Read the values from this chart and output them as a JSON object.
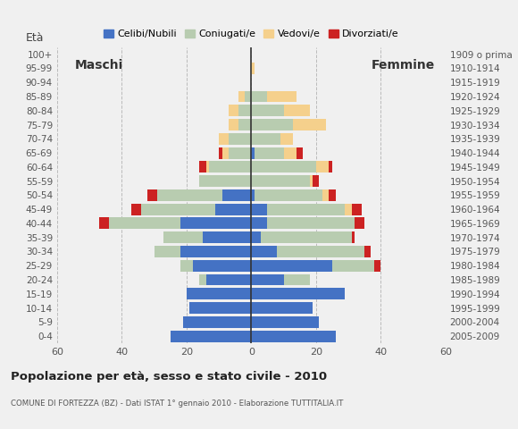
{
  "age_groups": [
    "0-4",
    "5-9",
    "10-14",
    "15-19",
    "20-24",
    "25-29",
    "30-34",
    "35-39",
    "40-44",
    "45-49",
    "50-54",
    "55-59",
    "60-64",
    "65-69",
    "70-74",
    "75-79",
    "80-84",
    "85-89",
    "90-94",
    "95-99",
    "100+"
  ],
  "birth_years": [
    "2005-2009",
    "2000-2004",
    "1995-1999",
    "1990-1994",
    "1985-1989",
    "1980-1984",
    "1975-1979",
    "1970-1974",
    "1965-1969",
    "1960-1964",
    "1955-1959",
    "1950-1954",
    "1945-1949",
    "1940-1944",
    "1935-1939",
    "1930-1934",
    "1925-1929",
    "1920-1924",
    "1915-1919",
    "1910-1914",
    "1909 o prima"
  ],
  "males": {
    "celibi": [
      25,
      21,
      19,
      20,
      14,
      18,
      22,
      15,
      22,
      11,
      9,
      0,
      0,
      0,
      0,
      0,
      0,
      0,
      0,
      0,
      0
    ],
    "coniugati": [
      0,
      0,
      0,
      0,
      2,
      4,
      8,
      12,
      22,
      23,
      20,
      16,
      13,
      7,
      7,
      4,
      4,
      2,
      0,
      0,
      0
    ],
    "vedovi": [
      0,
      0,
      0,
      0,
      0,
      0,
      0,
      0,
      0,
      0,
      0,
      0,
      1,
      2,
      3,
      3,
      3,
      2,
      0,
      0,
      0
    ],
    "divorziati": [
      0,
      0,
      0,
      0,
      0,
      0,
      0,
      0,
      3,
      3,
      3,
      0,
      2,
      1,
      0,
      0,
      0,
      0,
      0,
      0,
      0
    ]
  },
  "females": {
    "nubili": [
      26,
      21,
      19,
      29,
      10,
      25,
      8,
      3,
      5,
      5,
      1,
      0,
      0,
      1,
      0,
      0,
      0,
      0,
      0,
      0,
      0
    ],
    "coniugate": [
      0,
      0,
      0,
      0,
      8,
      13,
      27,
      28,
      27,
      24,
      21,
      18,
      20,
      9,
      9,
      13,
      10,
      5,
      0,
      0,
      0
    ],
    "vedove": [
      0,
      0,
      0,
      0,
      0,
      0,
      0,
      0,
      0,
      2,
      2,
      1,
      4,
      4,
      4,
      10,
      8,
      9,
      0,
      1,
      0
    ],
    "divorziate": [
      0,
      0,
      0,
      0,
      0,
      2,
      2,
      1,
      3,
      3,
      2,
      2,
      1,
      2,
      0,
      0,
      0,
      0,
      0,
      0,
      0
    ]
  },
  "colors": {
    "celibi_nubili": "#4472C4",
    "coniugati": "#B8CCB0",
    "vedovi": "#F5D08C",
    "divorziati": "#CC2222"
  },
  "xlim": 60,
  "title": "Popolazione per età, sesso e stato civile - 2010",
  "subtitle": "COMUNE DI FORTEZZA (BZ) - Dati ISTAT 1° gennaio 2010 - Elaborazione TUTTITALIA.IT",
  "ylabel_left": "Età",
  "legend_labels": [
    "Celibi/Nubili",
    "Coniugati/e",
    "Vedovi/e",
    "Divorziati/e"
  ],
  "background_color": "#F0F0F0"
}
